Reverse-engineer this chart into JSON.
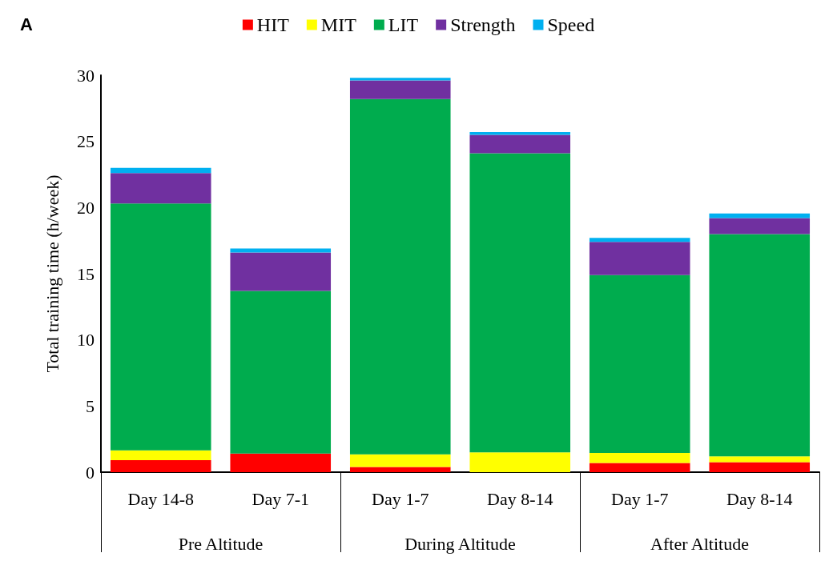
{
  "chart_data": {
    "type": "bar",
    "title": "A",
    "ylabel": "Total training time (h/week)",
    "stacked": true,
    "categories": [
      "Day 14-8",
      "Day 7-1",
      "Day 1-7",
      "Day 8-14",
      "Day 1-7",
      "Day 8-14"
    ],
    "annotations": [
      "Pre Altitude",
      "During Altitude",
      "After Altitude"
    ],
    "series": [
      {
        "name": "HIT",
        "color": "#ff0000",
        "values": [
          0.9,
          1.4,
          0.4,
          0,
          0.7,
          0.75
        ]
      },
      {
        "name": "MIT",
        "color": "#ffff00",
        "values": [
          0.75,
          0,
          0.95,
          1.5,
          0.75,
          0.45
        ]
      },
      {
        "name": "LIT",
        "color": "#00ac4e",
        "values": [
          18.65,
          12.3,
          26.85,
          22.6,
          13.45,
          16.8
        ]
      },
      {
        "name": "Strength",
        "color": "#7030a0",
        "values": [
          2.3,
          2.9,
          1.4,
          1.4,
          2.5,
          1.2
        ]
      },
      {
        "name": "Speed",
        "color": "#00b0f0",
        "values": [
          0.4,
          0.3,
          0.2,
          0.2,
          0.3,
          0.35
        ]
      }
    ],
    "ylim": [
      0,
      30
    ],
    "yticks": [
      0,
      5,
      10,
      15,
      20,
      25,
      30
    ],
    "grid": false,
    "legend": "top"
  }
}
